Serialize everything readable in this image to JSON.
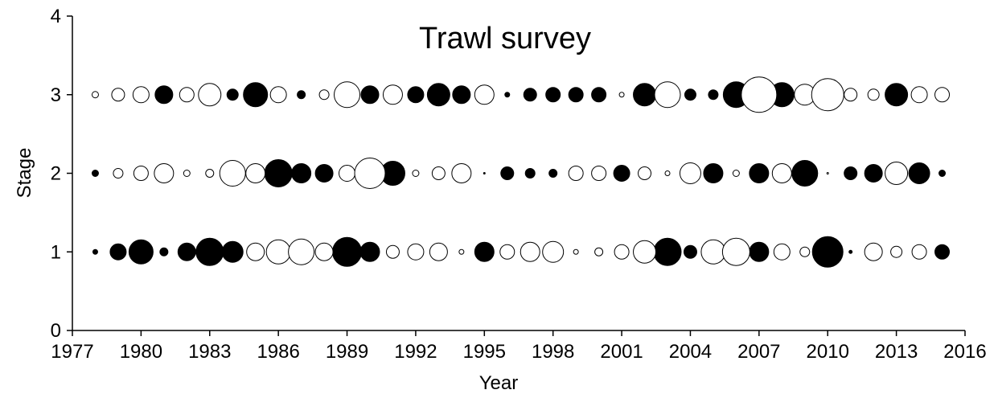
{
  "chart_data": {
    "type": "bubble",
    "title": "Trawl survey",
    "x_label": "Year",
    "y_label": "Stage",
    "xlim": [
      1977,
      2016
    ],
    "xticks": [
      1977,
      1980,
      1983,
      1986,
      1989,
      1992,
      1995,
      1998,
      2001,
      2004,
      2007,
      2010,
      2013,
      2016
    ],
    "ylim": [
      0,
      4
    ],
    "yticks": [
      0,
      1,
      2,
      3,
      4
    ],
    "series": [
      {
        "color": "#000000",
        "x": [
          1981,
          1984,
          1985,
          1987,
          1990,
          1992,
          1993,
          1994,
          1996,
          1997,
          1998,
          1999,
          2000,
          2002,
          2004,
          2005,
          2006,
          2008,
          2013,
          1978,
          1986,
          1987,
          1988,
          1991,
          1995,
          1996,
          1997,
          1998,
          2001,
          2005,
          2007,
          2009,
          2011,
          2012,
          2014,
          2015,
          1978,
          1979,
          1980,
          1981,
          1982,
          1983,
          1984,
          1989,
          1990,
          1995,
          2003,
          2004,
          2007,
          2010,
          2011,
          2015
        ],
        "y": [
          3,
          3,
          3,
          3,
          3,
          3,
          3,
          3,
          3,
          3,
          3,
          3,
          3,
          3,
          3,
          3,
          3,
          3,
          3,
          2,
          2,
          2,
          2,
          2,
          2,
          2,
          2,
          2,
          2,
          2,
          2,
          2,
          2,
          2,
          2,
          2,
          1,
          1,
          1,
          1,
          1,
          1,
          1,
          1,
          1,
          1,
          1,
          1,
          1,
          1,
          1,
          1
        ],
        "size": [
          11,
          7,
          15,
          5,
          11,
          10,
          14,
          11,
          3,
          8,
          9,
          9,
          9,
          14,
          7,
          6,
          16,
          15,
          14,
          4,
          17,
          12,
          11,
          15,
          1,
          8,
          6,
          5,
          10,
          12,
          12,
          16,
          8,
          11,
          13,
          4,
          3,
          10,
          15,
          5,
          11,
          17,
          13,
          18,
          12,
          12,
          17,
          8,
          12,
          19,
          2,
          9
        ]
      },
      {
        "color": "#ffffff",
        "x": [
          1978,
          1979,
          1980,
          1982,
          1983,
          1986,
          1988,
          1989,
          1991,
          1995,
          2001,
          2003,
          2007,
          2009,
          2010,
          2011,
          2012,
          2014,
          2015,
          1979,
          1980,
          1981,
          1982,
          1983,
          1984,
          1985,
          1989,
          1990,
          1992,
          1993,
          1994,
          1999,
          2000,
          2002,
          2003,
          2004,
          2006,
          2008,
          2010,
          2013,
          1985,
          1986,
          1987,
          1988,
          1991,
          1992,
          1993,
          1994,
          1996,
          1997,
          1998,
          1999,
          2000,
          2001,
          2002,
          2005,
          2006,
          2008,
          2009,
          2012,
          2013,
          2014
        ],
        "y": [
          3,
          3,
          3,
          3,
          3,
          3,
          3,
          3,
          3,
          3,
          3,
          3,
          3,
          3,
          3,
          3,
          3,
          3,
          3,
          2,
          2,
          2,
          2,
          2,
          2,
          2,
          2,
          2,
          2,
          2,
          2,
          2,
          2,
          2,
          2,
          2,
          2,
          2,
          2,
          2,
          1,
          1,
          1,
          1,
          1,
          1,
          1,
          1,
          1,
          1,
          1,
          1,
          1,
          1,
          1,
          1,
          1,
          1,
          1,
          1,
          1,
          1
        ],
        "size": [
          4,
          8,
          10,
          9,
          14,
          10,
          6,
          16,
          12,
          12,
          3,
          16,
          22,
          13,
          20,
          8,
          7,
          10,
          9,
          6,
          9,
          12,
          4,
          5,
          16,
          12,
          10,
          19,
          4,
          8,
          12,
          9,
          9,
          8,
          3,
          13,
          4,
          12,
          1,
          14,
          11,
          15,
          16,
          11,
          8,
          10,
          11,
          3,
          9,
          12,
          13,
          3,
          5,
          9,
          14,
          15,
          17,
          10,
          6,
          11,
          7,
          9
        ]
      }
    ]
  }
}
